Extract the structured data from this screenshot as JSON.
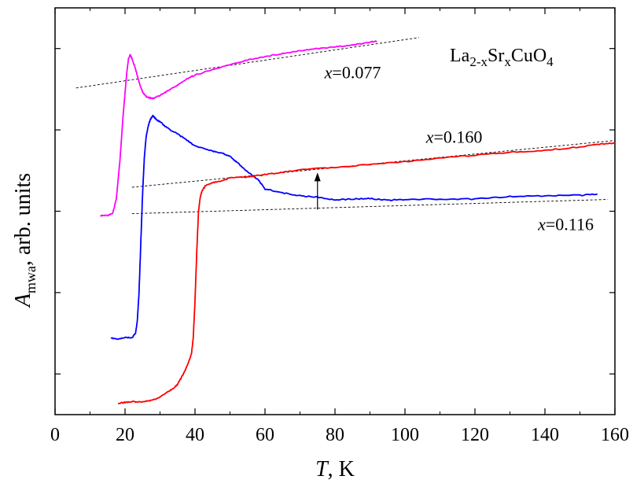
{
  "chart_data": {
    "type": "line",
    "title": "",
    "formula": {
      "base1": "La",
      "sub1": "2-x",
      "base2": "Sr",
      "sub2": "x",
      "base3": "CuO",
      "sub3": "4"
    },
    "xlabel": {
      "var": "T",
      "rest": ", K"
    },
    "ylabel": {
      "var": "A",
      "sub": "mwa",
      "rest": ", arb. units"
    },
    "xlim": [
      0,
      160
    ],
    "ylim": [
      0,
      100
    ],
    "x_ticks": [
      "0",
      "20",
      "40",
      "60",
      "80",
      "100",
      "120",
      "140",
      "160"
    ],
    "y_tick_values": [
      10,
      30,
      50,
      70,
      90
    ],
    "y_tick_labels_shown": false,
    "grid": false,
    "legend": "none",
    "annotations": [
      {
        "var": "x",
        "text": "=0.077",
        "x": 77,
        "y": 82.7
      },
      {
        "var": "x",
        "text": "=0.160",
        "x": 106,
        "y": 66.8
      },
      {
        "var": "x",
        "text": "=0.116",
        "x": 138,
        "y": 45.4
      }
    ],
    "arrow": {
      "x": 75,
      "y_start": 50.4,
      "y_end": 59.5
    },
    "series": [
      {
        "color": "#ff00ff",
        "x": [
          13,
          15,
          16.5,
          17.5,
          18.5,
          19.5,
          20.5,
          21,
          21.5,
          22,
          23,
          24,
          25,
          26,
          27,
          28,
          30,
          32,
          35,
          38,
          40,
          45,
          50,
          55,
          60,
          65,
          70,
          75,
          80,
          85,
          88,
          90,
          92
        ],
        "y": [
          48.9,
          49,
          49.5,
          53,
          62,
          74,
          84,
          87.5,
          88.5,
          87.5,
          85,
          81.8,
          79.3,
          78.2,
          77.9,
          77.7,
          78.5,
          79.5,
          81,
          82.7,
          83.5,
          84.8,
          86,
          87.2,
          88,
          88.8,
          89.5,
          90,
          90.4,
          90.9,
          91.2,
          91.6,
          91.8
        ]
      },
      {
        "color": "#0000ff",
        "x": [
          16,
          18,
          20,
          22,
          23,
          23.5,
          24,
          24.5,
          25,
          25.5,
          26,
          26.5,
          27,
          27.5,
          28,
          29,
          30,
          32,
          35,
          38,
          40,
          45,
          48,
          50,
          52,
          55,
          58,
          60,
          65,
          70,
          75,
          80,
          85,
          90,
          95,
          100,
          110,
          120,
          130,
          140,
          150,
          155
        ],
        "y": [
          18.8,
          18.5,
          19,
          18.9,
          20,
          23,
          30,
          42,
          54,
          63,
          68,
          70.5,
          72,
          73,
          73.5,
          72.5,
          72,
          70.5,
          69,
          67.3,
          66,
          64.8,
          64.2,
          63.5,
          62,
          59.7,
          57.8,
          55.5,
          54.5,
          53.8,
          53.5,
          52.8,
          53,
          53.1,
          52.7,
          52.9,
          53,
          53,
          53.6,
          53.8,
          53.9,
          54.2
        ]
      },
      {
        "color": "#ff0000",
        "x": [
          18,
          20,
          22,
          24,
          26,
          28,
          30,
          32,
          34,
          35,
          36,
          37,
          38,
          39,
          39.5,
          40,
          40.5,
          41,
          41.5,
          42,
          43,
          45,
          48,
          50,
          55,
          60,
          65,
          70,
          80,
          90,
          100,
          110,
          120,
          130,
          140,
          150,
          155,
          160
        ],
        "y": [
          2.8,
          3,
          3.2,
          3.1,
          3.3,
          3.6,
          4.3,
          5.5,
          6.5,
          7.5,
          9,
          10.5,
          12.5,
          15,
          19,
          28,
          40,
          50,
          53.5,
          55,
          56.3,
          57,
          57.5,
          58.3,
          58.4,
          59,
          59.6,
          60.2,
          60.8,
          61.5,
          62.2,
          63,
          63.8,
          64.5,
          65,
          65.8,
          66.5,
          66.7
        ]
      }
    ],
    "dashed_baselines": [
      {
        "x": [
          6,
          104
        ],
        "y": [
          80.3,
          92.7
        ]
      },
      {
        "x": [
          22,
          160
        ],
        "y": [
          55.9,
          67.4
        ]
      },
      {
        "x": [
          22,
          158
        ],
        "y": [
          49.4,
          52.9
        ]
      }
    ],
    "colors": {
      "x_0.077": "#ff00ff",
      "x_0.116": "#0000ff",
      "x_0.160": "#ff0000",
      "dashed": "#000000"
    }
  }
}
